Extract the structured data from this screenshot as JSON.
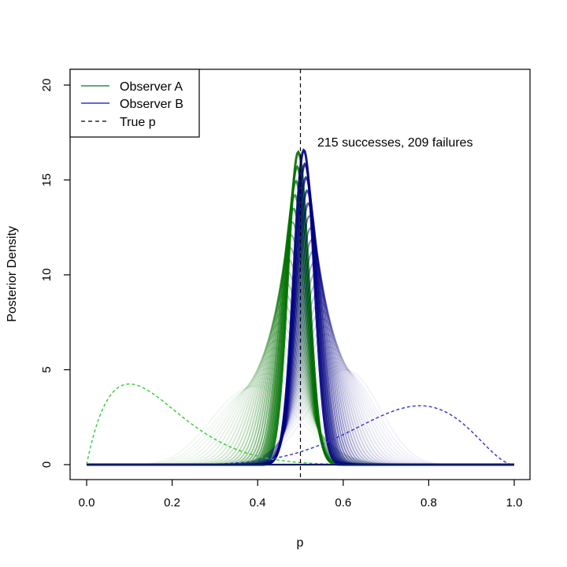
{
  "chart_data": {
    "type": "line",
    "xlabel": "p",
    "ylabel": "Posterior Density",
    "xlim": [
      0.0,
      1.0
    ],
    "ylim": [
      0,
      20
    ],
    "x_ticks": [
      "0.0",
      "0.2",
      "0.4",
      "0.6",
      "0.8",
      "1.0"
    ],
    "x_tick_values": [
      0.0,
      0.2,
      0.4,
      0.6,
      0.8,
      1.0
    ],
    "y_ticks": [
      "0",
      "5",
      "10",
      "15",
      "20"
    ],
    "y_tick_values": [
      0,
      5,
      10,
      15,
      20
    ],
    "grid": false,
    "legend_placement": "top-left",
    "legend": [
      {
        "label": "Observer A",
        "style": "solid",
        "color": "#2e8b57"
      },
      {
        "label": "Observer B",
        "style": "solid",
        "color": "#3333cc"
      },
      {
        "label": "True p",
        "style": "dashed",
        "color": "#000000"
      }
    ],
    "annotation": "215 successes, 209 failures",
    "true_p": 0.5,
    "priors": [
      {
        "observer": "Observer A",
        "mode": 0.1,
        "peak": 4.25,
        "style": "dashed",
        "color": "#33cc33"
      },
      {
        "observer": "Observer B",
        "mode": 0.78,
        "peak": 3.1,
        "style": "dashed",
        "color": "#3333cc"
      }
    ],
    "posteriors": [
      {
        "observer": "Observer A",
        "final_mean": 0.495,
        "final_peak": 16.5,
        "early_peak": 9.4,
        "color": "#007000"
      },
      {
        "observer": "Observer B",
        "final_mean": 0.508,
        "final_peak": 16.6,
        "early_peak": 11.3,
        "color": "#000080"
      }
    ]
  }
}
